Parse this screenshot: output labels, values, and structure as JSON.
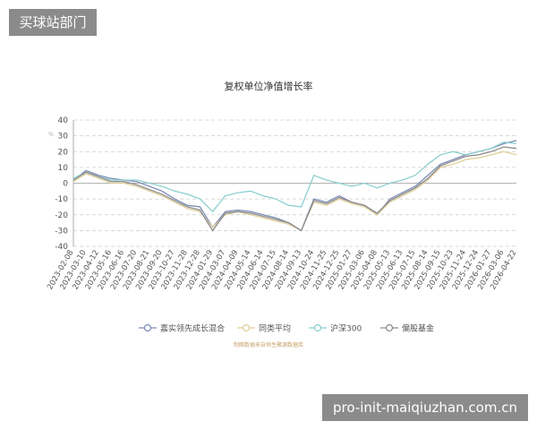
{
  "chart_data": {
    "type": "line",
    "title": "复权单位净值增长率",
    "ylabel": "%",
    "categories": [
      "2023-02-08",
      "2023-03-10",
      "2023-04-12",
      "2023-05-16",
      "2023-06-16",
      "2023-07-20",
      "2023-08-21",
      "2023-09-20",
      "2023-10-27",
      "2023-11-28",
      "2023-12-28",
      "2024-01-29",
      "2024-03-07",
      "2024-04-09",
      "2024-05-14",
      "2024-06-14",
      "2024-07-15",
      "2024-08-14",
      "2024-09-13",
      "2024-10-24",
      "2024-11-25",
      "2024-12-25",
      "2025-01-27",
      "2025-03-06",
      "2025-04-08",
      "2025-05-13",
      "2025-06-13",
      "2025-07-15",
      "2025-08-14",
      "2025-09-15",
      "2025-10-23",
      "2025-11-24",
      "2025-12-24",
      "2026-01-27",
      "2026-03-06",
      "2026-04-22"
    ],
    "series": [
      {
        "name": "嘉实领先成长混合",
        "color": "#7b8db5",
        "values": [
          2,
          8,
          5,
          3,
          2,
          1,
          -2,
          -5,
          -10,
          -14,
          -15,
          -28,
          -18,
          -17,
          -18,
          -20,
          -22,
          -25,
          -30,
          -10,
          -12,
          -8,
          -12,
          -14,
          -20,
          -10,
          -6,
          -2,
          5,
          12,
          15,
          18,
          20,
          22,
          25,
          27
        ]
      },
      {
        "name": "同类平均",
        "color": "#e0cf9a",
        "values": [
          1,
          6,
          3,
          0,
          0,
          -2,
          -5,
          -8,
          -12,
          -16,
          -18,
          -28,
          -20,
          -18,
          -20,
          -22,
          -24,
          -26,
          -30,
          -12,
          -14,
          -10,
          -13,
          -15,
          -20,
          -12,
          -8,
          -4,
          2,
          10,
          12,
          15,
          16,
          18,
          20,
          18
        ]
      },
      {
        "name": "沪深300",
        "color": "#8ccfd0",
        "values": [
          3,
          7,
          4,
          2,
          2,
          2,
          0,
          -2,
          -5,
          -7,
          -10,
          -18,
          -8,
          -6,
          -5,
          -8,
          -10,
          -14,
          -15,
          5,
          2,
          0,
          -2,
          0,
          -3,
          0,
          2,
          5,
          12,
          18,
          20,
          18,
          20,
          22,
          26,
          25
        ]
      },
      {
        "name": "偏股基金",
        "color": "#8c8c8c",
        "values": [
          2,
          7,
          4,
          1,
          1,
          -1,
          -4,
          -7,
          -11,
          -15,
          -17,
          -30,
          -19,
          -18,
          -19,
          -21,
          -23,
          -25,
          -30,
          -11,
          -13,
          -9,
          -12,
          -14,
          -19,
          -11,
          -7,
          -3,
          3,
          11,
          14,
          17,
          18,
          20,
          23,
          22
        ]
      }
    ],
    "ylim": [
      -40,
      40
    ],
    "yticks": [
      -40,
      -30,
      -20,
      -10,
      0,
      10,
      20,
      30,
      40
    ],
    "grid": true,
    "source": "制图数据来自恒生聚源数据库"
  },
  "watermarks": {
    "top_left": "买球站部门",
    "bottom_right": "pro-init-maiqiuzhan.com.cn"
  }
}
